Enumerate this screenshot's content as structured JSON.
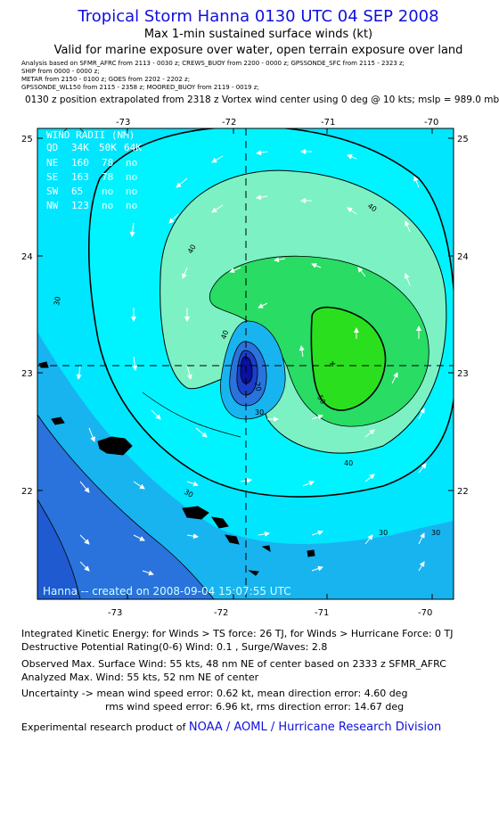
{
  "header": {
    "title": "Tropical Storm Hanna 0130 UTC 04 SEP 2008",
    "subtitle": "Max 1-min sustained surface winds (kt)",
    "valid_note": "Valid for marine exposure over water, open terrain exposure over land",
    "analysis_lines": [
      "Analysis based on  SFMR_AFRC from 2113 - 0030 z;  CREWS_BUOY from 2200 - 0000 z;  GPSSONDE_SFC from 2115 - 2323 z;",
      "SHIP from 0000 - 0000 z;",
      "METAR from 2150 - 0100 z;  GOES from 2202 - 2202 z;",
      "GPSSONDE_WL150 from 2115 - 2358 z;  MOORED_BUOY from 2119 - 0019 z;"
    ],
    "position_line": "0130 z position extrapolated from 2318 z Vortex wind center using 0 deg @ 10 kts; mslp = 989.0 mb"
  },
  "map": {
    "lon_ticks": [
      "-73",
      "-72",
      "-71",
      "-70"
    ],
    "lat_ticks": [
      "25",
      "24",
      "23",
      "22"
    ],
    "lon_range": [
      -73.7,
      -69.7
    ],
    "lat_range": [
      21.2,
      25.1
    ],
    "center": {
      "lon": -71.76,
      "lat": 23.06
    },
    "max_wind_marker": {
      "lon": -71.0,
      "lat": 23.1
    },
    "contour_labels": [
      "40",
      "40",
      "40",
      "30",
      "30",
      "30",
      "30",
      "20",
      "30",
      "50",
      "40"
    ],
    "wind_radii": {
      "title": "WIND RADII (NM)",
      "header": [
        "QD",
        "34K",
        "50K",
        "64K"
      ],
      "rows": [
        [
          "NE",
          "160",
          "78",
          "no"
        ],
        [
          "SE",
          "163",
          "78",
          "no"
        ],
        [
          "SW",
          "65",
          "no",
          "no"
        ],
        [
          "NW",
          "123",
          "no",
          "no"
        ]
      ]
    },
    "credit": "Hanna -- created on 2008-09-04 15:07:55 UTC",
    "colors": {
      "w20": "#2a73dc",
      "w25": "#18b4f0",
      "w30": "#00e6ff",
      "w40": "#7cf2c4",
      "w50": "#28dc64",
      "w55": "#2ae01e"
    }
  },
  "footer": {
    "ike": "Integrated Kinetic Energy:  for Winds > TS force: 26 TJ,  for Winds > Hurricane Force: 0 TJ",
    "dpr": "Destructive Potential Rating(0-6)   Wind: 0.1 , Surge/Waves: 2.8",
    "observed": "Observed Max. Surface Wind: 55 kts, 48 nm NE of center based on 2333 z SFMR_AFRC",
    "analyzed": "Analyzed Max. Wind: 55 kts, 52 nm NE of center",
    "uncert1": "Uncertainty -> mean wind speed error: 0.62 kt,   mean direction error: 4.60 deg",
    "uncert2": "rms wind speed error: 6.96 kt,   rms direction error: 14.67 deg",
    "product_prefix": "Experimental research product of",
    "product_link": "NOAA / AOML / Hurricane Research Division"
  }
}
